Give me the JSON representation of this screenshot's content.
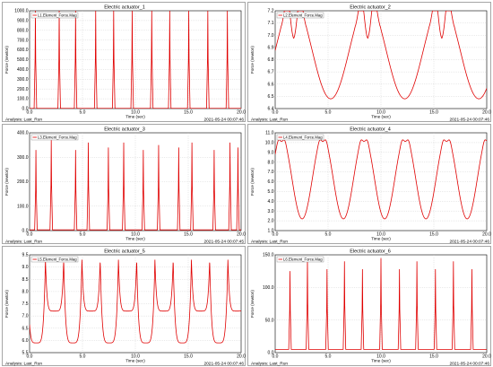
{
  "chart_data": [
    {
      "type": "line",
      "title": "Electric actuator_1",
      "xlabel": "Time (sec)",
      "ylabel": "Force (newton)",
      "xlim": [
        0.0,
        20.0
      ],
      "ylim": [
        0.0,
        1000.0
      ],
      "xticks": [
        "0.0",
        "5.0",
        "10.0",
        "15.0",
        "20.0"
      ],
      "yticks": [
        "0.0",
        "100.0",
        "200.0",
        "300.0",
        "400.0",
        "500.0",
        "600.0",
        "700.0",
        "800.0",
        "900.0",
        "1000.0"
      ],
      "legend": "L1.Element_Force.Mag",
      "legend_position": "top-left",
      "grid": true,
      "series": [
        {
          "name": "L1.Element_Force.Mag",
          "color": "#e00000",
          "kind": "spike",
          "baseline": 2,
          "peaks": [
            {
              "x": 0.55,
              "y": 1000
            },
            {
              "x": 2.8,
              "y": 1000
            },
            {
              "x": 4.35,
              "y": 1000
            },
            {
              "x": 6.25,
              "y": 1000
            },
            {
              "x": 7.95,
              "y": 1000
            },
            {
              "x": 9.7,
              "y": 1000
            },
            {
              "x": 11.55,
              "y": 1000
            },
            {
              "x": 13.25,
              "y": 1000
            },
            {
              "x": 15.05,
              "y": 1000
            },
            {
              "x": 16.85,
              "y": 1000
            },
            {
              "x": 18.7,
              "y": 1000
            }
          ]
        }
      ],
      "analysis": "Analysis:  Last_Run",
      "timestamp": "2021-05-24 00:07:46"
    },
    {
      "type": "line",
      "title": "Electric actuator_2",
      "xlabel": "Time (sec)",
      "ylabel": "Force (newton)",
      "xlim": [
        0.0,
        20.0
      ],
      "ylim": [
        6.4,
        7.2
      ],
      "xticks": [
        "0.0",
        "5.0",
        "10.0",
        "15.0",
        "20.0"
      ],
      "yticks": [
        "6.4",
        "6.5",
        "6.6",
        "6.7",
        "6.8",
        "6.9",
        "7.0",
        "7.1",
        "7.2"
      ],
      "legend": "L2.Element_Force.Mag",
      "legend_position": "top-left",
      "grid": true,
      "series": [
        {
          "name": "L2.Element_Force.Mag",
          "color": "#e00000",
          "kind": "wave",
          "wave": {
            "period": 7.0,
            "phase": 1.75,
            "high": 7.27,
            "low": 6.48,
            "mid_plateau": 7.03,
            "baseline_dip": 6.55
          }
        }
      ],
      "analysis": "Analysis:  Last_Run",
      "timestamp": "2021-05-24 00:07:46"
    },
    {
      "type": "line",
      "title": "Electric actuator_3",
      "xlabel": "Time (sec)",
      "ylabel": "Force (newton)",
      "xlim": [
        0.0,
        20.0
      ],
      "ylim": [
        0.0,
        400.0
      ],
      "xticks": [
        "0.0",
        "5.0",
        "10.0",
        "15.0",
        "20.0"
      ],
      "yticks": [
        "0.0",
        "100.0",
        "200.0",
        "300.0",
        "400.0"
      ],
      "legend": "L3.Element_Force.Mag",
      "legend_position": "top-left",
      "grid": true,
      "series": [
        {
          "name": "L3.Element_Force.Mag",
          "color": "#e00000",
          "kind": "spike",
          "baseline": 3,
          "peaks": [
            {
              "x": 0.6,
              "y": 330
            },
            {
              "x": 2.05,
              "y": 370
            },
            {
              "x": 4.35,
              "y": 330
            },
            {
              "x": 5.55,
              "y": 360
            },
            {
              "x": 7.45,
              "y": 340
            },
            {
              "x": 8.9,
              "y": 360
            },
            {
              "x": 10.75,
              "y": 330
            },
            {
              "x": 12.2,
              "y": 350
            },
            {
              "x": 14.1,
              "y": 340
            },
            {
              "x": 15.35,
              "y": 360
            },
            {
              "x": 17.45,
              "y": 330
            },
            {
              "x": 18.95,
              "y": 360
            },
            {
              "x": 19.7,
              "y": 340
            }
          ]
        }
      ],
      "analysis": "Analysis:  Last_Run",
      "timestamp": "2021-05-24 00:07:45"
    },
    {
      "type": "line",
      "title": "Electric actuator_4",
      "xlabel": "Time (sec)",
      "ylabel": "Force (newton)",
      "xlim": [
        0.0,
        20.0
      ],
      "ylim": [
        1.0,
        11.0
      ],
      "xticks": [
        "0.0",
        "5.0",
        "10.0",
        "15.0",
        "20.0"
      ],
      "yticks": [
        "1.0",
        "2.0",
        "3.0",
        "4.0",
        "5.0",
        "6.0",
        "7.0",
        "8.0",
        "9.0",
        "10.0",
        "11.0"
      ],
      "legend": "L4.Element_Force.Mag",
      "legend_position": "top-left",
      "grid": true,
      "series": [
        {
          "name": "L4.Element_Force.Mag",
          "color": "#e00000",
          "kind": "wave",
          "wave": {
            "period": 3.9,
            "phase": 0.6,
            "high": 10.6,
            "low": 2.2,
            "mid_plateau": 10.2,
            "baseline_dip": 2.2
          }
        }
      ],
      "analysis": "Analysis:  Last_Run",
      "timestamp": "2021-05-24 00:07:46"
    },
    {
      "type": "line",
      "title": "Electric actuator_5",
      "xlabel": "Time (sec)",
      "ylabel": "Force (newton)",
      "xlim": [
        0.0,
        20.0
      ],
      "ylim": [
        5.5,
        9.5
      ],
      "xticks": [
        "0.0",
        "5.0",
        "10.0",
        "15.0",
        "20.0"
      ],
      "yticks": [
        "5.5",
        "6.0",
        "6.5",
        "7.0",
        "7.5",
        "8.0",
        "8.5",
        "9.0",
        "9.5"
      ],
      "legend": "L5.Element_Force.Mag",
      "legend_position": "top-left",
      "grid": true,
      "series": [
        {
          "name": "L5.Element_Force.Mag",
          "color": "#e00000",
          "kind": "double",
          "period": 3.45,
          "phase": 1.5,
          "upper": 7.2,
          "lower": 5.9,
          "top": 9.3
        }
      ],
      "analysis": "Analysis:  Last_Run",
      "timestamp": "2021-05-24 00:07:46"
    },
    {
      "type": "line",
      "title": "Electric actuator_6",
      "xlabel": "Time (sec)",
      "ylabel": "Force (newton)",
      "xlim": [
        0.0,
        20.0
      ],
      "ylim": [
        0.0,
        150.0
      ],
      "xticks": [
        "0.0",
        "5.0",
        "10.0",
        "15.0",
        "20.0"
      ],
      "yticks": [
        "0.0",
        "50.0",
        "100.0",
        "150.0"
      ],
      "legend": "L6.Element_Force.Mag",
      "legend_position": "top-left",
      "grid": true,
      "series": [
        {
          "name": "L6.Element_Force.Mag",
          "color": "#e00000",
          "kind": "spike",
          "baseline": 5,
          "peaks": [
            {
              "x": 1.4,
              "y": 125
            },
            {
              "x": 3.05,
              "y": 145
            },
            {
              "x": 4.9,
              "y": 128
            },
            {
              "x": 6.55,
              "y": 140
            },
            {
              "x": 8.25,
              "y": 128
            },
            {
              "x": 10.0,
              "y": 145
            },
            {
              "x": 11.75,
              "y": 128
            },
            {
              "x": 13.4,
              "y": 140
            },
            {
              "x": 15.15,
              "y": 128
            },
            {
              "x": 16.85,
              "y": 140
            },
            {
              "x": 18.6,
              "y": 128
            }
          ]
        }
      ],
      "analysis": "Analysis:  Last_Run",
      "timestamp": "2021-05-24 00:07:46"
    }
  ]
}
